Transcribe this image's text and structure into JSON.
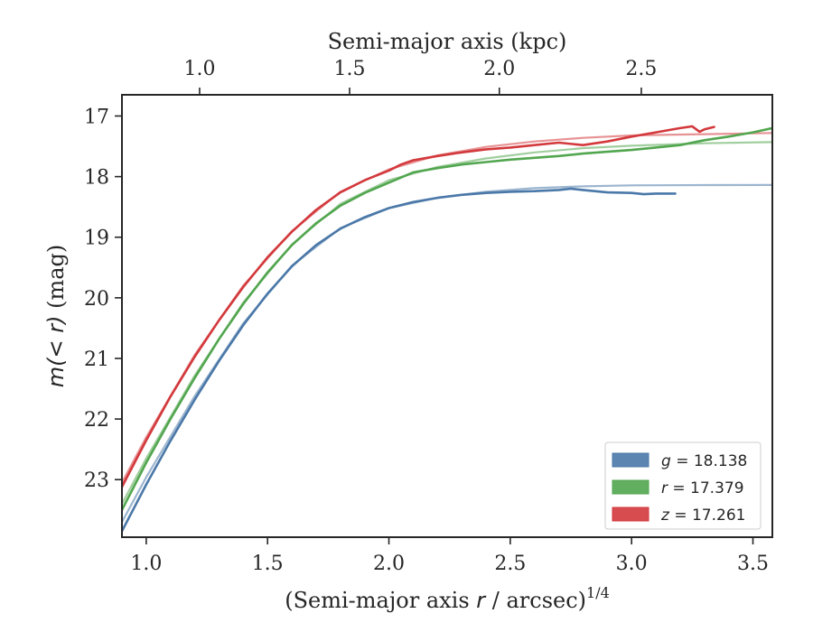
{
  "chart_data": {
    "type": "line",
    "xlabel": "(Semi-major axis r / arcsec)^{1/4}",
    "xlabel_parts": {
      "pre": "(Semi-major axis ",
      "var": "r",
      "mid": " / arcsec)",
      "sup": "1/4"
    },
    "ylabel": "m(< r) (mag)",
    "ylabel_parts": {
      "pre": "m(< r)",
      "post": " (mag)"
    },
    "top_xlabel": "Semi-major axis (kpc)",
    "xlim": [
      0.9,
      3.58
    ],
    "ylim": [
      23.95,
      16.65
    ],
    "y_inverted": true,
    "x_ticks": [
      1.0,
      1.5,
      2.0,
      2.5,
      3.0,
      3.5
    ],
    "x_tick_labels": [
      "1.0",
      "1.5",
      "2.0",
      "2.5",
      "3.0",
      "3.5"
    ],
    "y_ticks": [
      17,
      18,
      19,
      20,
      21,
      22,
      23
    ],
    "y_tick_labels": [
      "17",
      "18",
      "19",
      "20",
      "21",
      "22",
      "23"
    ],
    "top_x_ticks_at_bottom_x": [
      1.22,
      1.838,
      2.455,
      3.04
    ],
    "top_x_tick_labels": [
      "1.0",
      "1.5",
      "2.0",
      "2.5"
    ],
    "legend_position": "lower-right",
    "grid": false,
    "colors": {
      "g": "#4a78a8",
      "r": "#52a64f",
      "z": "#d3393c",
      "axis": "#262626"
    },
    "series": [
      {
        "key": "g",
        "name": "g = 18.138",
        "legend_var": "g",
        "legend_value": "= 18.138",
        "color": "#4a78a8",
        "data": [
          [
            0.9,
            23.85
          ],
          [
            1.0,
            23.08
          ],
          [
            1.1,
            22.36
          ],
          [
            1.2,
            21.68
          ],
          [
            1.3,
            21.04
          ],
          [
            1.4,
            20.45
          ],
          [
            1.5,
            19.93
          ],
          [
            1.6,
            19.48
          ],
          [
            1.7,
            19.13
          ],
          [
            1.8,
            18.86
          ],
          [
            1.9,
            18.67
          ],
          [
            2.0,
            18.52
          ],
          [
            2.1,
            18.42
          ],
          [
            2.2,
            18.35
          ],
          [
            2.3,
            18.3
          ],
          [
            2.4,
            18.27
          ],
          [
            2.5,
            18.25
          ],
          [
            2.6,
            18.24
          ],
          [
            2.7,
            18.22
          ],
          [
            2.75,
            18.2
          ],
          [
            2.8,
            18.22
          ],
          [
            2.9,
            18.26
          ],
          [
            3.0,
            18.27
          ],
          [
            3.05,
            18.29
          ],
          [
            3.1,
            18.28
          ],
          [
            3.18,
            18.28
          ]
        ],
        "model": [
          [
            0.9,
            23.7
          ],
          [
            1.0,
            22.96
          ],
          [
            1.2,
            21.62
          ],
          [
            1.4,
            20.42
          ],
          [
            1.6,
            19.47
          ],
          [
            1.8,
            18.85
          ],
          [
            2.0,
            18.52
          ],
          [
            2.2,
            18.35
          ],
          [
            2.4,
            18.25
          ],
          [
            2.6,
            18.19
          ],
          [
            2.8,
            18.16
          ],
          [
            3.0,
            18.145
          ],
          [
            3.3,
            18.14
          ],
          [
            3.58,
            18.138
          ]
        ]
      },
      {
        "key": "r",
        "name": "r = 17.379",
        "legend_var": "r",
        "legend_value": "= 17.379",
        "color": "#52a64f",
        "data": [
          [
            0.9,
            23.5
          ],
          [
            1.0,
            22.72
          ],
          [
            1.1,
            22.0
          ],
          [
            1.2,
            21.32
          ],
          [
            1.3,
            20.68
          ],
          [
            1.4,
            20.1
          ],
          [
            1.5,
            19.58
          ],
          [
            1.6,
            19.13
          ],
          [
            1.7,
            18.77
          ],
          [
            1.8,
            18.48
          ],
          [
            1.9,
            18.27
          ],
          [
            2.0,
            18.1
          ],
          [
            2.1,
            17.93
          ],
          [
            2.2,
            17.86
          ],
          [
            2.3,
            17.8
          ],
          [
            2.4,
            17.76
          ],
          [
            2.5,
            17.72
          ],
          [
            2.6,
            17.69
          ],
          [
            2.7,
            17.66
          ],
          [
            2.8,
            17.62
          ],
          [
            2.9,
            17.59
          ],
          [
            3.0,
            17.56
          ],
          [
            3.1,
            17.52
          ],
          [
            3.2,
            17.48
          ],
          [
            3.3,
            17.4
          ],
          [
            3.4,
            17.34
          ],
          [
            3.5,
            17.27
          ],
          [
            3.58,
            17.2
          ]
        ],
        "model": [
          [
            0.9,
            23.4
          ],
          [
            1.0,
            22.65
          ],
          [
            1.2,
            21.28
          ],
          [
            1.4,
            20.08
          ],
          [
            1.6,
            19.12
          ],
          [
            1.8,
            18.45
          ],
          [
            2.0,
            18.06
          ],
          [
            2.2,
            17.84
          ],
          [
            2.4,
            17.7
          ],
          [
            2.6,
            17.6
          ],
          [
            2.8,
            17.53
          ],
          [
            3.0,
            17.49
          ],
          [
            3.3,
            17.45
          ],
          [
            3.58,
            17.43
          ]
        ]
      },
      {
        "key": "z",
        "name": "z = 17.261",
        "legend_var": "z",
        "legend_value": "= 17.261",
        "color": "#d3393c",
        "data": [
          [
            0.9,
            23.12
          ],
          [
            1.0,
            22.35
          ],
          [
            1.1,
            21.63
          ],
          [
            1.2,
            20.97
          ],
          [
            1.3,
            20.37
          ],
          [
            1.4,
            19.82
          ],
          [
            1.5,
            19.33
          ],
          [
            1.6,
            18.91
          ],
          [
            1.7,
            18.55
          ],
          [
            1.8,
            18.26
          ],
          [
            1.9,
            18.06
          ],
          [
            2.0,
            17.9
          ],
          [
            2.05,
            17.8
          ],
          [
            2.1,
            17.73
          ],
          [
            2.2,
            17.66
          ],
          [
            2.3,
            17.6
          ],
          [
            2.4,
            17.55
          ],
          [
            2.5,
            17.52
          ],
          [
            2.6,
            17.48
          ],
          [
            2.7,
            17.44
          ],
          [
            2.8,
            17.48
          ],
          [
            2.85,
            17.45
          ],
          [
            2.9,
            17.42
          ],
          [
            3.0,
            17.34
          ],
          [
            3.1,
            17.27
          ],
          [
            3.2,
            17.2
          ],
          [
            3.25,
            17.17
          ],
          [
            3.28,
            17.26
          ],
          [
            3.3,
            17.22
          ],
          [
            3.34,
            17.18
          ]
        ],
        "model": [
          [
            0.9,
            23.05
          ],
          [
            1.0,
            22.3
          ],
          [
            1.2,
            20.94
          ],
          [
            1.4,
            19.8
          ],
          [
            1.6,
            18.9
          ],
          [
            1.8,
            18.25
          ],
          [
            2.0,
            17.88
          ],
          [
            2.2,
            17.65
          ],
          [
            2.4,
            17.51
          ],
          [
            2.6,
            17.42
          ],
          [
            2.8,
            17.36
          ],
          [
            3.0,
            17.32
          ],
          [
            3.3,
            17.3
          ],
          [
            3.58,
            17.28
          ]
        ]
      }
    ]
  }
}
